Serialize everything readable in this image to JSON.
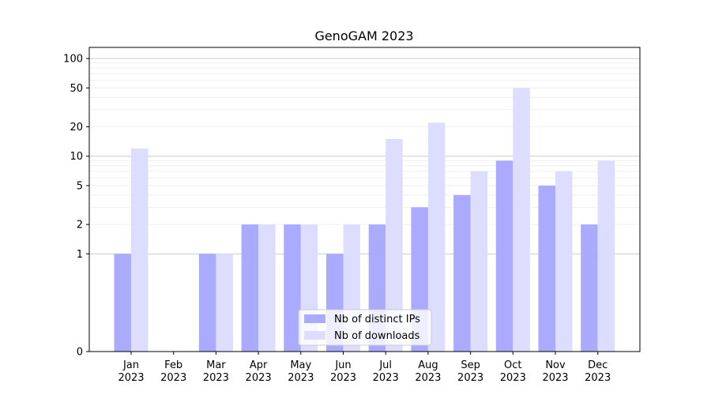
{
  "chart_data": {
    "type": "bar",
    "title": "GenoGAM 2023",
    "xlabel": "",
    "ylabel": "",
    "categories": [
      [
        "Jan",
        "2023"
      ],
      [
        "Feb",
        "2023"
      ],
      [
        "Mar",
        "2023"
      ],
      [
        "Apr",
        "2023"
      ],
      [
        "May",
        "2023"
      ],
      [
        "Jun",
        "2023"
      ],
      [
        "Jul",
        "2023"
      ],
      [
        "Aug",
        "2023"
      ],
      [
        "Sep",
        "2023"
      ],
      [
        "Oct",
        "2023"
      ],
      [
        "Nov",
        "2023"
      ],
      [
        "Dec",
        "2023"
      ]
    ],
    "series": [
      {
        "name": "Nb of distinct IPs",
        "color": "#aaaaff",
        "values": [
          1,
          0,
          1,
          2,
          2,
          1,
          2,
          3,
          4,
          9,
          5,
          2
        ]
      },
      {
        "name": "Nb of downloads",
        "color": "#ddddff",
        "values": [
          12,
          0,
          1,
          2,
          2,
          2,
          15,
          22,
          7,
          50,
          7,
          9
        ]
      }
    ],
    "yscale": "symlog",
    "ylim": [
      0,
      130
    ],
    "yticks": [
      0,
      1,
      2,
      5,
      10,
      20,
      50,
      100
    ],
    "grid": true,
    "legend_position": "lower-center"
  }
}
